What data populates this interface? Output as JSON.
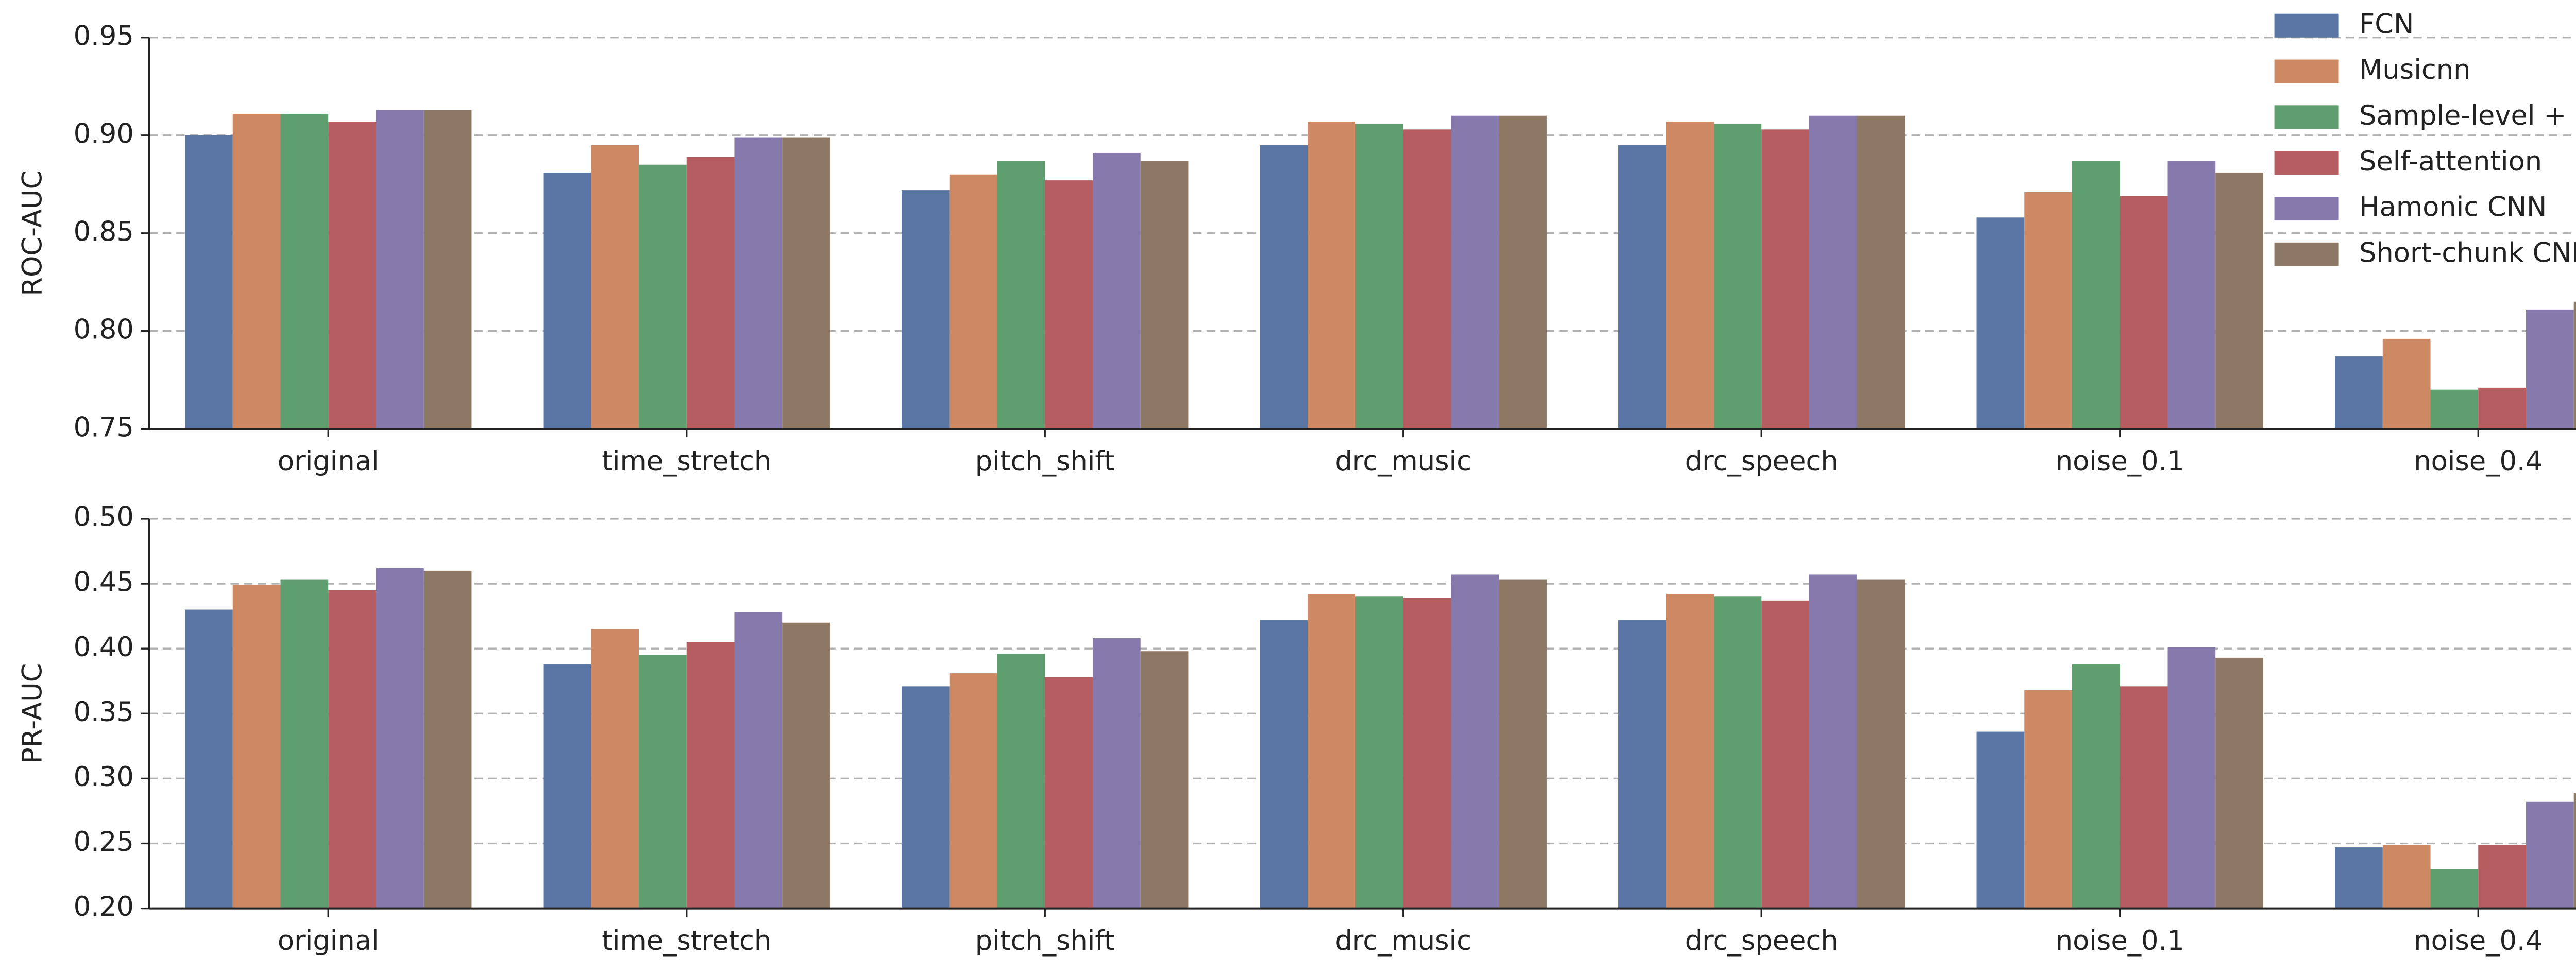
{
  "chart_data": [
    {
      "type": "bar",
      "y_label": "ROC-AUC",
      "categories": [
        "original",
        "time_stretch",
        "pitch_shift",
        "drc_music",
        "drc_speech",
        "noise_0.1",
        "noise_0.4"
      ],
      "ylim": [
        0.75,
        0.95
      ],
      "yticks": [
        0.75,
        {
          "value": 0.8,
          "label": "0.80"
        },
        0.85,
        {
          "value": 0.9,
          "label": "0.90"
        },
        0.95
      ],
      "grid": true,
      "legend": "upper right",
      "series": [
        {
          "name": "FCN",
          "color": "#5875a4",
          "values": [
            0.9,
            0.881,
            0.872,
            0.895,
            0.895,
            0.858,
            0.787
          ]
        },
        {
          "name": "Musicnn",
          "color": "#cc8963",
          "values": [
            0.911,
            0.895,
            0.88,
            0.907,
            0.907,
            0.871,
            0.796
          ]
        },
        {
          "name": "Sample-level + SE",
          "color": "#5f9e6e",
          "values": [
            0.911,
            0.885,
            0.887,
            0.906,
            0.906,
            0.887,
            0.77
          ]
        },
        {
          "name": "Self-attention",
          "color": "#b55d60",
          "values": [
            0.907,
            0.889,
            0.877,
            0.903,
            0.903,
            0.869,
            0.771
          ]
        },
        {
          "name": "Hamonic CNN",
          "color": "#857aab",
          "values": [
            0.913,
            0.899,
            0.891,
            0.91,
            0.91,
            0.887,
            0.811
          ]
        },
        {
          "name": "Short-chunk CNN",
          "color": "#8d7866",
          "values": [
            0.913,
            0.899,
            0.887,
            0.91,
            0.91,
            0.881,
            0.815
          ]
        }
      ]
    },
    {
      "type": "bar",
      "y_label": "PR-AUC",
      "categories": [
        "original",
        "time_stretch",
        "pitch_shift",
        "drc_music",
        "drc_speech",
        "noise_0.1",
        "noise_0.4"
      ],
      "ylim": [
        0.2,
        0.5
      ],
      "yticks": [
        {
          "value": 0.2,
          "label": "0.20"
        },
        0.25,
        {
          "value": 0.3,
          "label": "0.30"
        },
        0.35,
        {
          "value": 0.4,
          "label": "0.40"
        },
        0.45,
        {
          "value": 0.5,
          "label": "0.50"
        }
      ],
      "grid": true,
      "series": [
        {
          "color": "#5875a4",
          "values": [
            0.43,
            0.388,
            0.371,
            0.422,
            0.422,
            0.336,
            0.247
          ]
        },
        {
          "color": "#cc8963",
          "values": [
            0.449,
            0.415,
            0.381,
            0.442,
            0.442,
            0.368,
            0.249
          ]
        },
        {
          "color": "#5f9e6e",
          "values": [
            0.453,
            0.395,
            0.396,
            0.44,
            0.44,
            0.388,
            0.23
          ]
        },
        {
          "color": "#b55d60",
          "values": [
            0.445,
            0.405,
            0.378,
            0.439,
            0.437,
            0.371,
            0.249
          ]
        },
        {
          "color": "#857aab",
          "values": [
            0.462,
            0.428,
            0.408,
            0.457,
            0.457,
            0.401,
            0.282
          ]
        },
        {
          "color": "#8d7866",
          "values": [
            0.46,
            0.42,
            0.398,
            0.453,
            0.453,
            0.393,
            0.289
          ]
        }
      ]
    }
  ]
}
